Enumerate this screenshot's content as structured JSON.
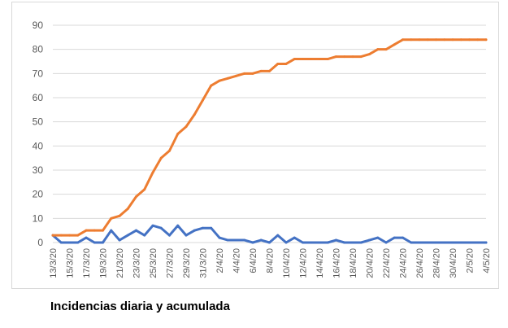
{
  "caption": "Incidencias diaria y acumulada",
  "chart_data": {
    "type": "line",
    "title": "",
    "xlabel": "",
    "ylabel": "",
    "ylim": [
      0,
      90
    ],
    "yticks": [
      0,
      10,
      20,
      30,
      40,
      50,
      60,
      70,
      80,
      90
    ],
    "grid": true,
    "legend": "none",
    "x": [
      "13/3/20",
      "14/3/20",
      "15/3/20",
      "16/3/20",
      "17/3/20",
      "18/3/20",
      "19/3/20",
      "20/3/20",
      "21/3/20",
      "22/3/20",
      "23/3/20",
      "24/3/20",
      "25/3/20",
      "26/3/20",
      "27/3/20",
      "28/3/20",
      "29/3/20",
      "30/3/20",
      "31/3/20",
      "1/4/20",
      "2/4/20",
      "3/4/20",
      "4/4/20",
      "5/4/20",
      "6/4/20",
      "7/4/20",
      "8/4/20",
      "9/4/20",
      "10/4/20",
      "11/4/20",
      "12/4/20",
      "13/4/20",
      "14/4/20",
      "15/4/20",
      "16/4/20",
      "17/4/20",
      "18/4/20",
      "19/4/20",
      "20/4/20",
      "21/4/20",
      "22/4/20",
      "23/4/20",
      "24/4/20",
      "25/4/20",
      "26/4/20",
      "27/4/20",
      "28/4/20",
      "29/4/20",
      "30/4/20",
      "1/5/20",
      "2/5/20",
      "3/5/20",
      "4/5/20"
    ],
    "x_tick_labels": [
      "13/3/20",
      "15/3/20",
      "17/3/20",
      "19/3/20",
      "21/3/20",
      "23/3/20",
      "25/3/20",
      "27/3/20",
      "29/3/20",
      "31/3/20",
      "2/4/20",
      "4/4/20",
      "6/4/20",
      "8/4/20",
      "10/4/20",
      "12/4/20",
      "14/4/20",
      "16/4/20",
      "18/4/20",
      "20/4/20",
      "22/4/20",
      "24/4/20",
      "26/4/20",
      "28/4/20",
      "30/4/20",
      "2/5/20",
      "4/5/20"
    ],
    "series": [
      {
        "color": "#4472c4",
        "values": [
          3,
          0,
          0,
          0,
          2,
          0,
          0,
          5,
          1,
          3,
          5,
          3,
          7,
          6,
          3,
          7,
          3,
          5,
          6,
          6,
          2,
          1,
          1,
          1,
          0,
          1,
          0,
          3,
          0,
          2,
          0,
          0,
          0,
          0,
          1,
          0,
          0,
          0,
          1,
          2,
          0,
          2,
          2,
          0,
          0,
          0,
          0,
          0,
          0,
          0,
          0,
          0,
          0
        ]
      },
      {
        "color": "#ed7d31",
        "values": [
          3,
          3,
          3,
          3,
          5,
          5,
          5,
          10,
          11,
          14,
          19,
          22,
          29,
          35,
          38,
          45,
          48,
          53,
          59,
          65,
          67,
          68,
          69,
          70,
          70,
          71,
          71,
          74,
          74,
          76,
          76,
          76,
          76,
          76,
          77,
          77,
          77,
          77,
          78,
          80,
          80,
          82,
          84,
          84,
          84,
          84,
          84,
          84,
          84,
          84,
          84,
          84,
          84
        ]
      }
    ]
  }
}
